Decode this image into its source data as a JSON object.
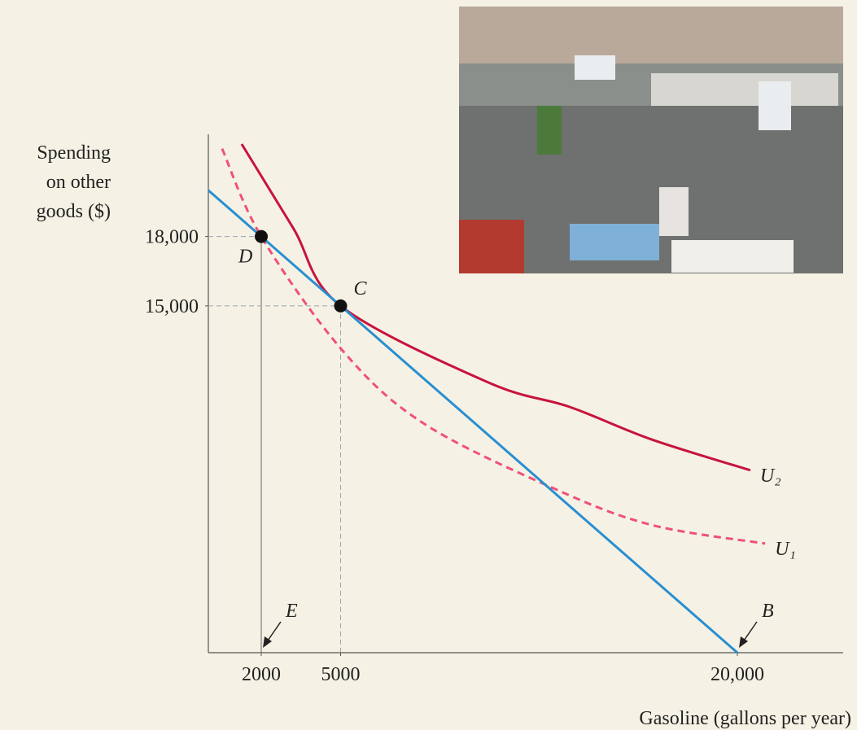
{
  "chart_data": {
    "type": "line",
    "xlabel": "Gasoline (gallons per year)",
    "ylabel": [
      "Spending",
      "on other",
      "goods ($)"
    ],
    "xlim": [
      0,
      24000
    ],
    "ylim": [
      0,
      22000
    ],
    "xticks": [
      2000,
      5000,
      {
        "value": 20000,
        "label": "20,000"
      }
    ],
    "yticks": [
      {
        "value": 15000,
        "label": "15,000"
      },
      {
        "value": 18000,
        "label": "18,000"
      }
    ],
    "budget_line": {
      "color": "#2a8fd0",
      "x": [
        0,
        2000,
        5000,
        20000
      ],
      "values": [
        20000,
        18000,
        15000,
        0
      ]
    },
    "series": [
      {
        "name": "U₂",
        "color": "#c8143c",
        "dashed": false,
        "x": [
          1260,
          3200,
          5000,
          10580,
          13660,
          16740,
          20490
        ],
        "values": [
          22000,
          18380,
          15000,
          11690,
          10630,
          9230,
          7890
        ]
      },
      {
        "name": "U₁",
        "color": "#f0507a",
        "dashed": true,
        "x": [
          520,
          2000,
          5050,
          8120,
          13050,
          16740,
          21050
        ],
        "values": [
          21800,
          18000,
          13100,
          9930,
          7110,
          5530,
          4720
        ]
      }
    ],
    "points": [
      {
        "label": "D",
        "x": 2000,
        "y": 18000
      },
      {
        "label": "C",
        "x": 5000,
        "y": 15000
      }
    ],
    "arrows": [
      {
        "label": "E",
        "x": 2000
      },
      {
        "label": "B",
        "x": 20000
      }
    ]
  }
}
